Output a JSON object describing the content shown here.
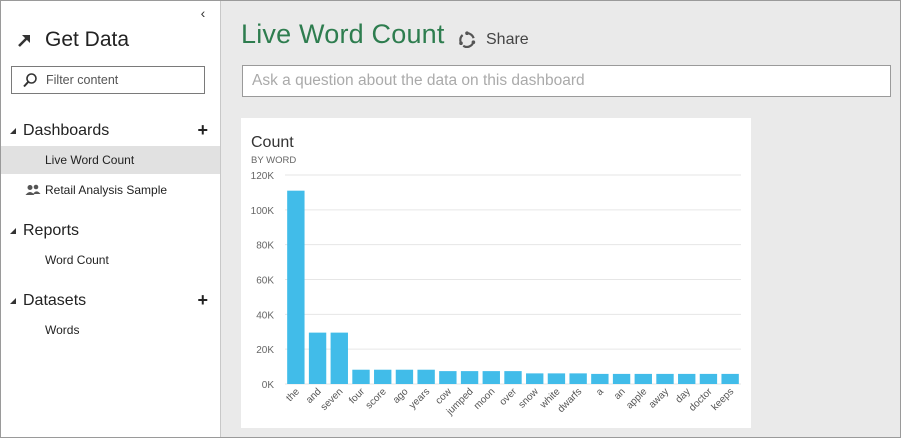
{
  "sidebar": {
    "collapse_glyph": "‹",
    "get_data": "Get Data",
    "filter_placeholder": "Filter content",
    "dashboards": {
      "title": "Dashboards",
      "add": "+",
      "items": [
        "Live Word Count",
        "Retail Analysis Sample"
      ]
    },
    "reports": {
      "title": "Reports",
      "items": [
        "Word Count"
      ]
    },
    "datasets": {
      "title": "Datasets",
      "add": "+",
      "items": [
        "Words"
      ]
    }
  },
  "header": {
    "title": "Live Word Count",
    "share": "Share",
    "qa_placeholder": "Ask a question about the data on this dashboard"
  },
  "colors": {
    "title": "#2e7d4f",
    "bar": "#41bce9",
    "selected": "#e1e1e1"
  },
  "chart_data": {
    "type": "bar",
    "title": "Count",
    "subtitle": "BY WORD",
    "xlabel": "",
    "ylabel": "",
    "ylim": [
      0,
      120000
    ],
    "yticks": [
      0,
      20000,
      40000,
      60000,
      80000,
      100000,
      120000
    ],
    "ytick_labels": [
      "0K",
      "20K",
      "40K",
      "60K",
      "80K",
      "100K",
      "120K"
    ],
    "grid": true,
    "categories": [
      "the",
      "and",
      "seven",
      "four",
      "score",
      "ago",
      "years",
      "cow",
      "jumped",
      "moon",
      "over",
      "snow",
      "white",
      "dwarfs",
      "a",
      "an",
      "apple",
      "away",
      "day",
      "doctor",
      "keeps"
    ],
    "values": [
      111000,
      29500,
      29500,
      8200,
      8200,
      8200,
      8200,
      7400,
      7400,
      7400,
      7400,
      6100,
      6100,
      6100,
      5800,
      5800,
      5800,
      5800,
      5800,
      5800,
      5800
    ]
  }
}
